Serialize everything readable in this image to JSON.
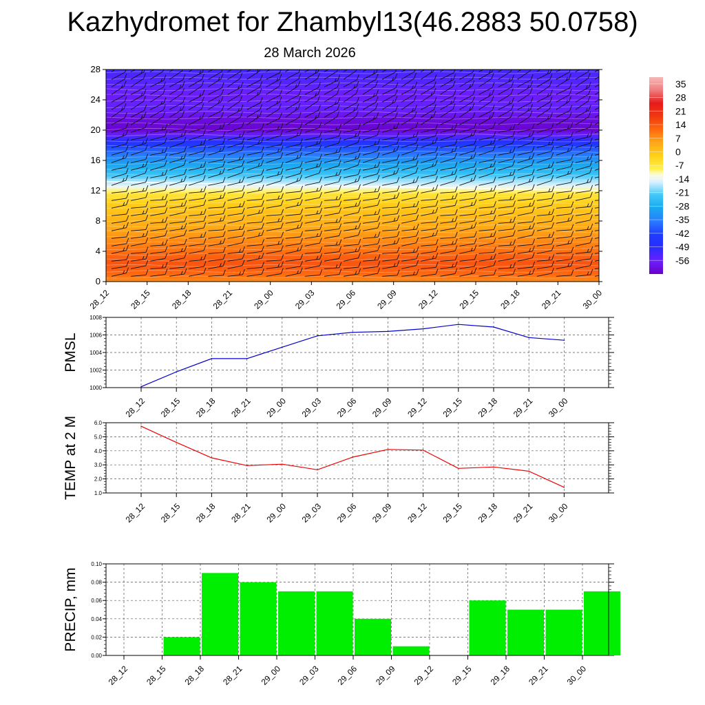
{
  "page": {
    "title": "Kazhydromet for Zhambyl13(46.2883 50.0758)",
    "subtitle": "28 March 2026"
  },
  "chart_data": [
    {
      "type": "heatmap",
      "name": "Vertical temperature cross-section",
      "x": [
        "28_12",
        "28_15",
        "28_18",
        "28_21",
        "29_00",
        "29_03",
        "29_06",
        "29_09",
        "29_12",
        "29_15",
        "29_18",
        "29_21",
        "30_00"
      ],
      "yticks": [
        0,
        4,
        8,
        12,
        16,
        20,
        24,
        28
      ],
      "ylim": [
        0,
        28
      ],
      "colorbar": {
        "labels": [
          35,
          28,
          21,
          14,
          7,
          0,
          -7,
          -14,
          -21,
          -28,
          -35,
          -42,
          -49,
          -56
        ],
        "range": [
          -63,
          42
        ]
      },
      "temperature_profile": {
        "heights": [
          0,
          1,
          2.5,
          4,
          6,
          8,
          10,
          11.5,
          12.5,
          13.5,
          14.5,
          16,
          17.5,
          18.5,
          20,
          21.5,
          23,
          24.5,
          26,
          28
        ],
        "values": [
          10,
          14,
          17,
          13,
          9,
          5,
          1,
          -4,
          -12,
          -18,
          -24,
          -31,
          -39,
          -47,
          -62,
          -60,
          -55,
          -57,
          -54,
          -52
        ]
      },
      "boundary_height": [
        13.2,
        13.1,
        13.0,
        12.9,
        12.8,
        12.7,
        12.6,
        12.5,
        12.4,
        12.3,
        12.2,
        12.1,
        12.0
      ]
    },
    {
      "type": "line",
      "name": "PMSL",
      "ylabel": "PMSL",
      "x": [
        "28_12",
        "28_15",
        "28_18",
        "28_21",
        "29_00",
        "29_03",
        "29_06",
        "29_09",
        "29_12",
        "29_15",
        "29_18",
        "29_21",
        "30_00"
      ],
      "values": [
        1000.1,
        1001.8,
        1003.3,
        1003.3,
        1004.6,
        1005.9,
        1006.3,
        1006.4,
        1006.7,
        1007.2,
        1006.9,
        1005.7,
        1005.4
      ],
      "ylim": [
        1000,
        1008
      ],
      "yticks": [
        "1000",
        "1002",
        "1004",
        "1006",
        "1008"
      ],
      "color": "#0000cc"
    },
    {
      "type": "line",
      "name": "TEMP at 2 M",
      "ylabel": "TEMP at 2 M",
      "x": [
        "28_12",
        "28_15",
        "28_18",
        "28_21",
        "29_00",
        "29_03",
        "29_06",
        "29_09",
        "29_12",
        "29_15",
        "29_18",
        "29_21",
        "30_00"
      ],
      "values": [
        5.75,
        4.6,
        3.5,
        2.95,
        3.05,
        2.65,
        3.55,
        4.1,
        4.05,
        2.75,
        2.85,
        2.55,
        1.4
      ],
      "ylim": [
        1,
        6
      ],
      "yticks": [
        "1.0",
        "2.0",
        "3.0",
        "4.0",
        "5.0",
        "6.0"
      ],
      "color": "#ee0000"
    },
    {
      "type": "bar",
      "name": "PRECIP, mm",
      "ylabel": "PRECIP, mm",
      "categories": [
        "28_12",
        "28_15",
        "28_18",
        "28_21",
        "29_00",
        "29_03",
        "29_06",
        "29_09",
        "29_12",
        "29_15",
        "29_18",
        "29_21",
        "30_00"
      ],
      "values": [
        0,
        0.02,
        0.09,
        0.08,
        0.07,
        0.07,
        0.04,
        0.01,
        0,
        0.06,
        0.05,
        0.05,
        0.07
      ],
      "ylim": [
        0,
        0.1
      ],
      "yticks": [
        "0.00",
        "0.02",
        "0.04",
        "0.06",
        "0.08",
        "0.10"
      ],
      "color": "#00ee00"
    }
  ]
}
